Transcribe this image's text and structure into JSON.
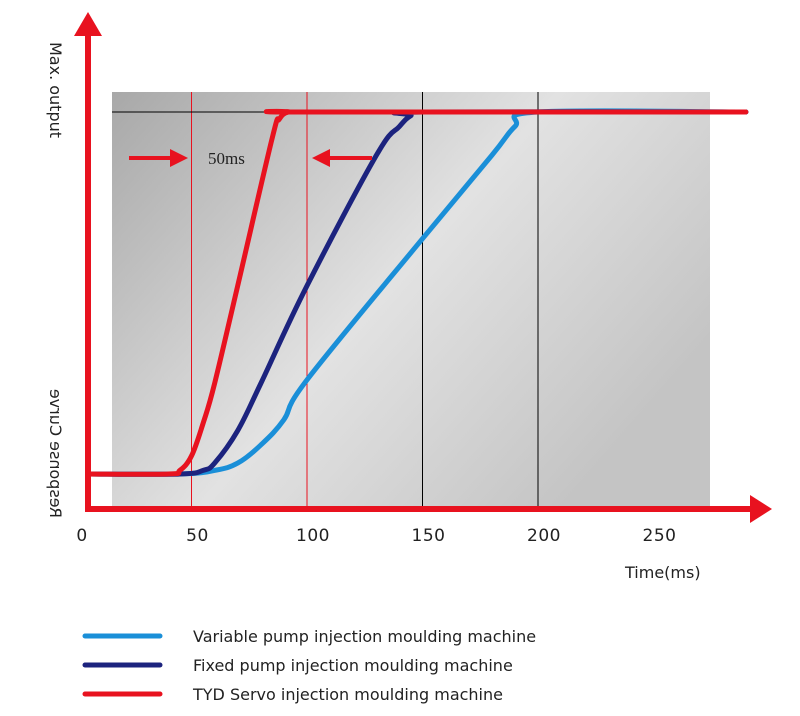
{
  "chart_data": {
    "type": "line",
    "xlabel": "Time(ms)",
    "ylabel": "Response Curve",
    "ylabel_top": "Max. output",
    "xlim": [
      0,
      290
    ],
    "ylim": [
      0,
      1
    ],
    "x_ticks": [
      "0",
      "50",
      "100",
      "150",
      "200",
      "250"
    ],
    "x_tick_values": [
      0,
      50,
      100,
      150,
      200,
      250
    ],
    "grid": false,
    "legend_position": "bottom",
    "series": [
      {
        "name": "Variable pump injection moulding machine",
        "color": "#1a8fd8",
        "x": [
          0,
          45,
          60,
          70,
          80,
          90,
          100,
          150,
          180,
          190,
          200,
          290
        ],
        "y": [
          0,
          0,
          0.01,
          0.03,
          0.08,
          0.15,
          0.26,
          0.65,
          0.88,
          0.96,
          1,
          1
        ]
      },
      {
        "name": "Fixed pump injection moulding machine",
        "color": "#1c237e",
        "x": [
          0,
          45,
          55,
          60,
          70,
          80,
          100,
          130,
          140,
          145,
          150,
          290
        ],
        "y": [
          0,
          0,
          0.01,
          0.03,
          0.12,
          0.25,
          0.52,
          0.88,
          0.96,
          0.99,
          1,
          1
        ]
      },
      {
        "name": "TYD Servo  injection moulding machine",
        "color": "#e8121f",
        "x": [
          0,
          40,
          45,
          50,
          55,
          60,
          70,
          85,
          88,
          92,
          100,
          290
        ],
        "y": [
          0,
          0,
          0.01,
          0.05,
          0.14,
          0.25,
          0.52,
          0.93,
          0.98,
          1,
          1,
          1
        ]
      }
    ],
    "reference_lines": [
      {
        "x": 50,
        "color": "#e8121f"
      },
      {
        "x": 100,
        "color": "#e8121f"
      },
      {
        "x": 150,
        "color": "#000000"
      },
      {
        "x": 200,
        "color": "#000000"
      }
    ],
    "annotations": [
      {
        "text": "50ms",
        "from": 50,
        "to": 100
      }
    ]
  }
}
